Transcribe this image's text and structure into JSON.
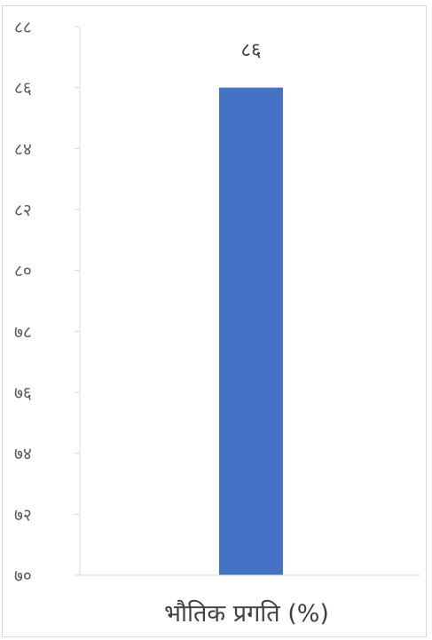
{
  "chart_data": {
    "type": "bar",
    "categories": [
      "भौतिक प्रगति (%)"
    ],
    "values": [
      86
    ],
    "value_labels": [
      "८६"
    ],
    "ylim": [
      70,
      88
    ],
    "ticks": [
      70,
      72,
      74,
      76,
      78,
      80,
      82,
      84,
      86,
      88
    ],
    "tick_labels": [
      "७०",
      "७२",
      "७४",
      "७६",
      "७८",
      "८०",
      "८२",
      "८४",
      "८६",
      "८८"
    ],
    "grid": false,
    "legend": "none",
    "colors": {
      "bar": "#4472c4",
      "axis": "#d9d9d9",
      "text": "#595959"
    }
  }
}
